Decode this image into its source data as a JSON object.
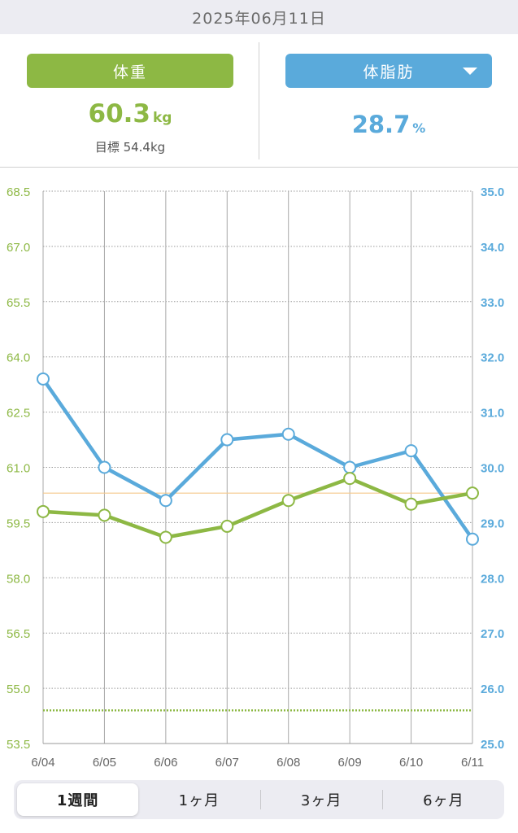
{
  "header": {
    "date": "2025年06月11日"
  },
  "summary": {
    "weight": {
      "label": "体重",
      "value": "60.3",
      "unit": "kg",
      "goal": "目標 54.4kg"
    },
    "bodyfat": {
      "label": "体脂肪",
      "value": "28.7",
      "unit": "%",
      "dropdown_icon": "caret-down-icon"
    }
  },
  "colors": {
    "weight": "#8db844",
    "bodyfat": "#5aaadb",
    "grid": "#9a9a9a",
    "goal_line": "#8db844",
    "current_line": "#f5c98a"
  },
  "chart_data": {
    "type": "line",
    "x": [
      "6/04",
      "6/05",
      "6/06",
      "6/07",
      "6/08",
      "6/09",
      "6/10",
      "6/11"
    ],
    "series": [
      {
        "name": "体重",
        "axis": "left",
        "values": [
          59.8,
          59.7,
          59.1,
          59.4,
          60.1,
          60.7,
          60.0,
          60.3
        ]
      },
      {
        "name": "体脂肪",
        "axis": "right",
        "values": [
          31.6,
          30.0,
          29.4,
          30.5,
          30.6,
          30.0,
          30.3,
          28.7
        ]
      }
    ],
    "y_left": {
      "ticks": [
        "68.5",
        "67.0",
        "65.5",
        "64.0",
        "62.5",
        "61.0",
        "59.5",
        "58.0",
        "56.5",
        "55.0",
        "53.5"
      ],
      "range": [
        53.5,
        68.5
      ]
    },
    "y_right": {
      "ticks": [
        "35.0",
        "34.0",
        "33.0",
        "32.0",
        "31.0",
        "30.0",
        "29.0",
        "28.0",
        "27.0",
        "26.0",
        "25.0"
      ],
      "range": [
        25.0,
        35.0
      ]
    },
    "goal_weight": 54.4,
    "current_weight": 60.3,
    "grid": true
  },
  "period_tabs": [
    {
      "label": "1週間",
      "active": true
    },
    {
      "label": "1ヶ月",
      "active": false
    },
    {
      "label": "3ヶ月",
      "active": false
    },
    {
      "label": "6ヶ月",
      "active": false
    }
  ]
}
